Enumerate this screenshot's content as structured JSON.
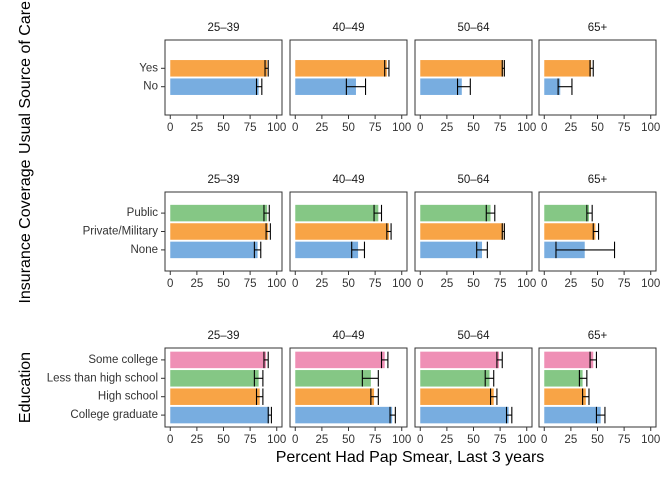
{
  "chart_data": {
    "type": "bar",
    "orientation": "horizontal",
    "xlabel": "Percent Had Pap Smear, Last 3 years",
    "xlim": [
      0,
      100
    ],
    "xticks": [
      0,
      25,
      50,
      75,
      100
    ],
    "age_groups": [
      "25–39",
      "40–49",
      "50–64",
      "65+"
    ],
    "grid": false,
    "legend": "none",
    "colors": {
      "blue": "#78ade0",
      "orange": "#f8a446",
      "green": "#85c785",
      "pink": "#ef8fb5",
      "errorbar": "#000000",
      "panel_border": "#333333"
    },
    "rows": [
      {
        "ylabel": "Usual Source of Care",
        "categories": [
          "Yes",
          "No"
        ],
        "bar_colors": [
          "orange",
          "blue"
        ],
        "panels": [
          {
            "age": "25–39",
            "values": [
              91,
              83
            ],
            "lower": [
              89,
              81
            ],
            "upper": [
              92,
              86
            ]
          },
          {
            "age": "40–49",
            "values": [
              86,
              57
            ],
            "lower": [
              84,
              48
            ],
            "upper": [
              88,
              66
            ]
          },
          {
            "age": "50–64",
            "values": [
              78,
              39
            ],
            "lower": [
              77,
              35
            ],
            "upper": [
              79,
              47
            ]
          },
          {
            "age": "65+",
            "values": [
              44,
              15
            ],
            "lower": [
              43,
              13
            ],
            "upper": [
              46,
              26
            ]
          }
        ]
      },
      {
        "ylabel": "Insurance Coverage",
        "categories": [
          "Public",
          "Private/Military",
          "None"
        ],
        "bar_colors": [
          "green",
          "orange",
          "blue"
        ],
        "panels": [
          {
            "age": "25–39",
            "values": [
              91,
              92,
              82
            ],
            "lower": [
              88,
              90,
              79
            ],
            "upper": [
              93,
              94,
              85
            ]
          },
          {
            "age": "40–49",
            "values": [
              78,
              88,
              59
            ],
            "lower": [
              74,
              86,
              53
            ],
            "upper": [
              81,
              90,
              65
            ]
          },
          {
            "age": "50–64",
            "values": [
              66,
              78,
              58
            ],
            "lower": [
              62,
              77,
              53
            ],
            "upper": [
              70,
              79,
              63
            ]
          },
          {
            "age": "65+",
            "values": [
              42,
              48,
              38
            ],
            "lower": [
              40,
              46,
              11
            ],
            "upper": [
              45,
              51,
              66
            ]
          }
        ]
      },
      {
        "ylabel": "Education",
        "categories": [
          "Some college",
          "Less than high school",
          "High school",
          "College graduate"
        ],
        "bar_colors": [
          "pink",
          "green",
          "orange",
          "blue"
        ],
        "panels": [
          {
            "age": "25–39",
            "values": [
              90,
              83,
              84,
              93
            ],
            "lower": [
              88,
              79,
              81,
              92
            ],
            "upper": [
              92,
              87,
              87,
              95
            ]
          },
          {
            "age": "40–49",
            "values": [
              84,
              71,
              74,
              91
            ],
            "lower": [
              81,
              63,
              71,
              89
            ],
            "upper": [
              87,
              78,
              78,
              94
            ]
          },
          {
            "age": "50–64",
            "values": [
              74,
              65,
              69,
              83
            ],
            "lower": [
              72,
              61,
              66,
              81
            ],
            "upper": [
              77,
              69,
              72,
              86
            ]
          },
          {
            "age": "65+",
            "values": [
              46,
              36,
              39,
              53
            ],
            "lower": [
              43,
              33,
              36,
              49
            ],
            "upper": [
              49,
              40,
              42,
              57
            ]
          }
        ]
      }
    ]
  }
}
